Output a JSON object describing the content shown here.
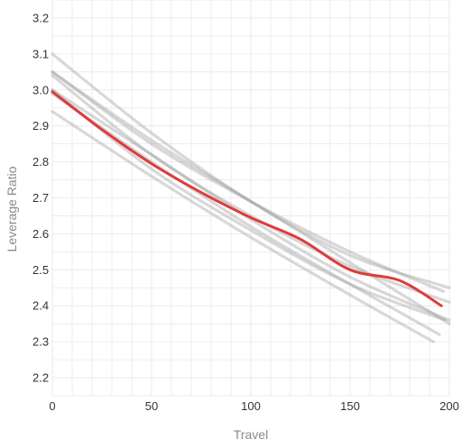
{
  "chart_data": {
    "type": "line",
    "xlabel": "Travel",
    "ylabel": "Leverage Ratio",
    "xlim": [
      0,
      200
    ],
    "ylim": [
      2.15,
      3.25
    ],
    "xticks": [
      0,
      50,
      100,
      150,
      200
    ],
    "xtick_labels": [
      "0",
      "50",
      "100",
      "150",
      "200"
    ],
    "yticks": [
      2.2,
      2.3,
      2.4,
      2.5,
      2.6,
      2.7,
      2.8,
      2.9,
      3.0,
      3.1,
      3.2
    ],
    "ytick_labels": [
      "2.2",
      "2.3",
      "2.4",
      "2.5",
      "2.6",
      "2.7",
      "2.8",
      "2.9",
      "3.0",
      "3.1",
      "3.2"
    ],
    "grid": true,
    "minor_grid_step_x": 10,
    "minor_grid_step_y": 0.05,
    "colors": {
      "highlight": "#e03a3a",
      "background_series": "#9e9e9e",
      "grid": "#e8e8e8"
    },
    "series": [
      {
        "highlight": false,
        "x": [
          0,
          50,
          100,
          150,
          200
        ],
        "y": [
          3.1,
          2.88,
          2.69,
          2.54,
          2.45
        ]
      },
      {
        "highlight": false,
        "x": [
          0,
          50,
          100,
          150,
          197
        ],
        "y": [
          3.05,
          2.85,
          2.69,
          2.55,
          2.44
        ]
      },
      {
        "highlight": false,
        "x": [
          0,
          50,
          100,
          150,
          200
        ],
        "y": [
          3.05,
          2.86,
          2.69,
          2.52,
          2.35
        ]
      },
      {
        "highlight": false,
        "x": [
          0,
          50,
          100,
          150,
          200
        ],
        "y": [
          3.04,
          2.82,
          2.65,
          2.51,
          2.41
        ]
      },
      {
        "highlight": false,
        "x": [
          0,
          50,
          100,
          150,
          200
        ],
        "y": [
          3.0,
          2.82,
          2.64,
          2.48,
          2.36
        ]
      },
      {
        "highlight": false,
        "x": [
          0,
          50,
          100,
          150,
          198
        ],
        "y": [
          3.0,
          2.78,
          2.61,
          2.46,
          2.36
        ]
      },
      {
        "highlight": false,
        "x": [
          0,
          50,
          100,
          150,
          195
        ],
        "y": [
          2.99,
          2.8,
          2.62,
          2.46,
          2.32
        ]
      },
      {
        "highlight": false,
        "x": [
          0,
          50,
          100,
          150,
          192
        ],
        "y": [
          2.94,
          2.76,
          2.59,
          2.43,
          2.3
        ]
      },
      {
        "highlight": true,
        "x": [
          0,
          25,
          50,
          75,
          100,
          125,
          150,
          175,
          196
        ],
        "y": [
          2.995,
          2.89,
          2.795,
          2.715,
          2.645,
          2.585,
          2.5,
          2.47,
          2.4
        ]
      }
    ]
  }
}
